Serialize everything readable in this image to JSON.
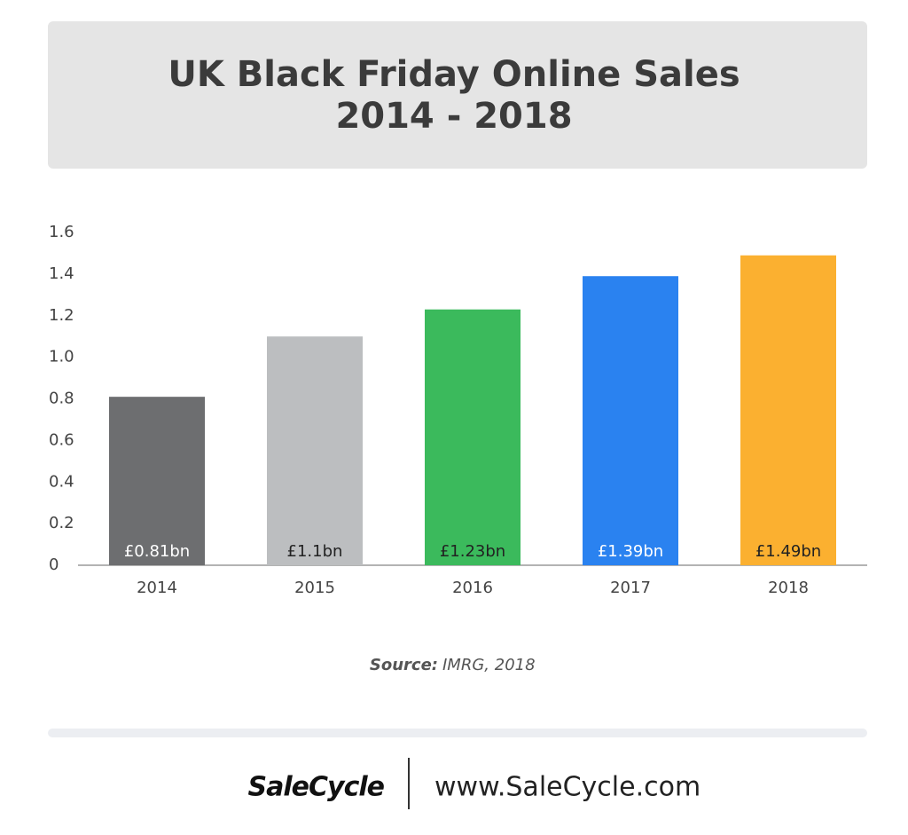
{
  "chart_data": {
    "type": "bar",
    "title": "UK Black Friday Online Sales",
    "subtitle": "2014 - 2018",
    "categories": [
      "2014",
      "2015",
      "2016",
      "2017",
      "2018"
    ],
    "values": [
      0.81,
      1.1,
      1.23,
      1.39,
      1.49
    ],
    "value_labels": [
      "£0.81bn",
      "£1.1bn",
      "£1.23bn",
      "£1.39bn",
      "£1.49bn"
    ],
    "colors": [
      "#6d6e70",
      "#bcbec0",
      "#3bba5c",
      "#2a82f0",
      "#fbb030"
    ],
    "value_label_colors": [
      "#ffffff",
      "#222222",
      "#222222",
      "#ffffff",
      "#222222"
    ],
    "ylim": [
      0,
      1.6
    ],
    "yticks": [
      0,
      0.2,
      0.4,
      0.6,
      0.8,
      {
        "value": 1,
        "label": "1.0"
      },
      1.2,
      1.4,
      1.6
    ],
    "grid": false,
    "source_label": "Source:",
    "source": "IMRG, 2018"
  },
  "footer": {
    "logo": "SaleCycle",
    "url": "www.SaleCycle.com"
  }
}
